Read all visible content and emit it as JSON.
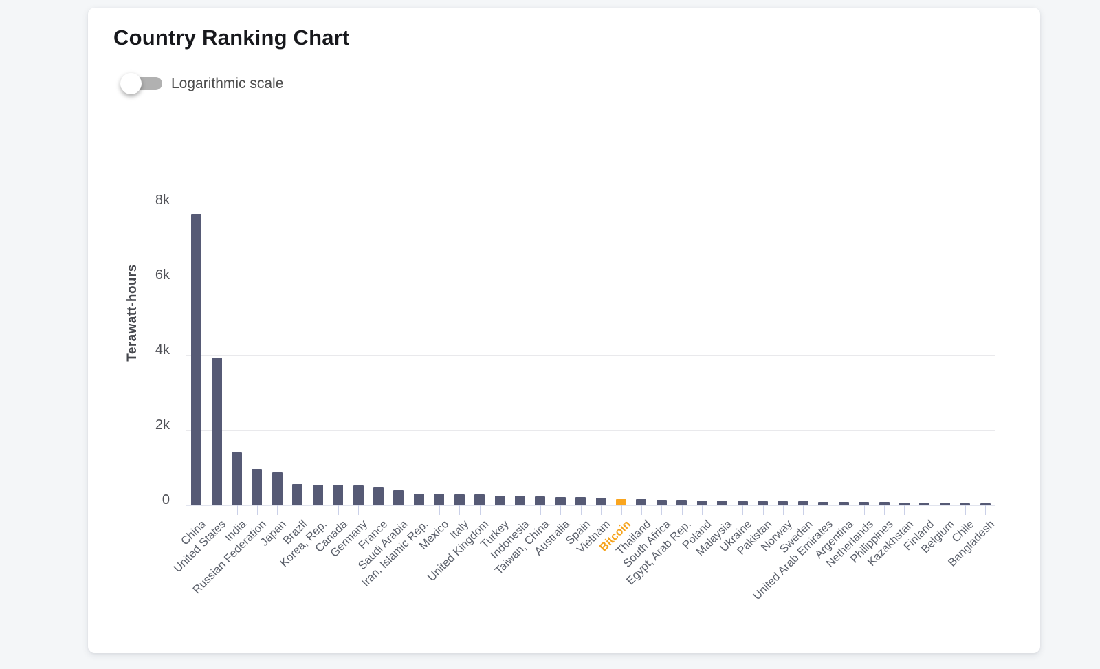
{
  "page": {
    "title": "Country Ranking Chart",
    "toggle_label": "Logarithmic scale",
    "toggle_state": "off"
  },
  "colors": {
    "bar": "#565a75",
    "bitcoin_highlight": "#f9a51f",
    "page_background": "#f4f6f8",
    "card_background": "#ffffff",
    "gridline": "#e9e9ec",
    "axis_tick": "#cad0e8",
    "label_text": "#5a5f6a"
  },
  "chart_data": {
    "type": "bar",
    "title": "Country Ranking Chart",
    "xlabel": "",
    "ylabel": "Terawatt-hours",
    "ylim": [
      0,
      10000
    ],
    "grid": true,
    "legend_position": "none",
    "yticks": [
      {
        "value": 0,
        "label": "0"
      },
      {
        "value": 2000,
        "label": "2k"
      },
      {
        "value": 4000,
        "label": "4k"
      },
      {
        "value": 6000,
        "label": "6k"
      },
      {
        "value": 8000,
        "label": "8k"
      },
      {
        "value": 10000,
        "label": ""
      }
    ],
    "highlight_category": "Bitcoin",
    "categories": [
      "China",
      "United States",
      "India",
      "Russian Federation",
      "Japan",
      "Brazil",
      "Korea, Rep.",
      "Canada",
      "Germany",
      "France",
      "Saudi Arabia",
      "Iran, Islamic Rep.",
      "Mexico",
      "Italy",
      "United Kingdom",
      "Turkey",
      "Indonesia",
      "Taiwan, China",
      "Australia",
      "Spain",
      "Vietnam",
      "Bitcoin",
      "Thailand",
      "South Africa",
      "Egypt, Arab Rep.",
      "Poland",
      "Malaysia",
      "Ukraine",
      "Pakistan",
      "Norway",
      "Sweden",
      "United Arab Emirates",
      "Argentina",
      "Netherlands",
      "Philippines",
      "Kazakhstan",
      "Finland",
      "Belgium",
      "Chile",
      "Bangladesh"
    ],
    "values": [
      7780,
      3950,
      1420,
      980,
      890,
      570,
      550,
      545,
      530,
      480,
      410,
      320,
      305,
      300,
      290,
      265,
      255,
      240,
      230,
      215,
      205,
      170,
      160,
      150,
      140,
      135,
      125,
      120,
      115,
      110,
      105,
      100,
      95,
      90,
      85,
      80,
      75,
      70,
      65,
      60
    ]
  }
}
